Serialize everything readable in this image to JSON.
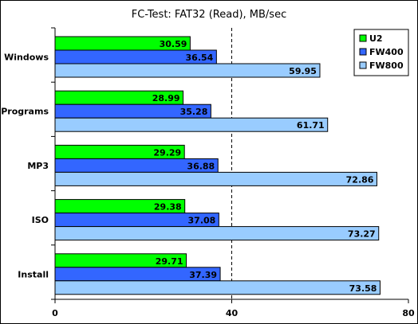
{
  "chart_data": {
    "type": "bar",
    "orientation": "horizontal",
    "title": "FC-Test: FAT32 (Read), MB/sec",
    "categories": [
      "Windows",
      "Programs",
      "MP3",
      "ISO",
      "Install"
    ],
    "series": [
      {
        "name": "U2",
        "color": "#00ff00",
        "values": [
          30.59,
          28.99,
          29.29,
          29.38,
          29.71
        ]
      },
      {
        "name": "FW400",
        "color": "#3366ff",
        "values": [
          36.54,
          35.28,
          36.88,
          37.08,
          37.39
        ]
      },
      {
        "name": "FW800",
        "color": "#99ccff",
        "values": [
          59.95,
          61.71,
          72.86,
          73.27,
          73.58
        ]
      }
    ],
    "xlim": [
      0,
      80
    ],
    "xticks": [
      "0",
      "40",
      "80"
    ],
    "reference_line": 40,
    "legend_position": "top-right",
    "grid": false
  }
}
